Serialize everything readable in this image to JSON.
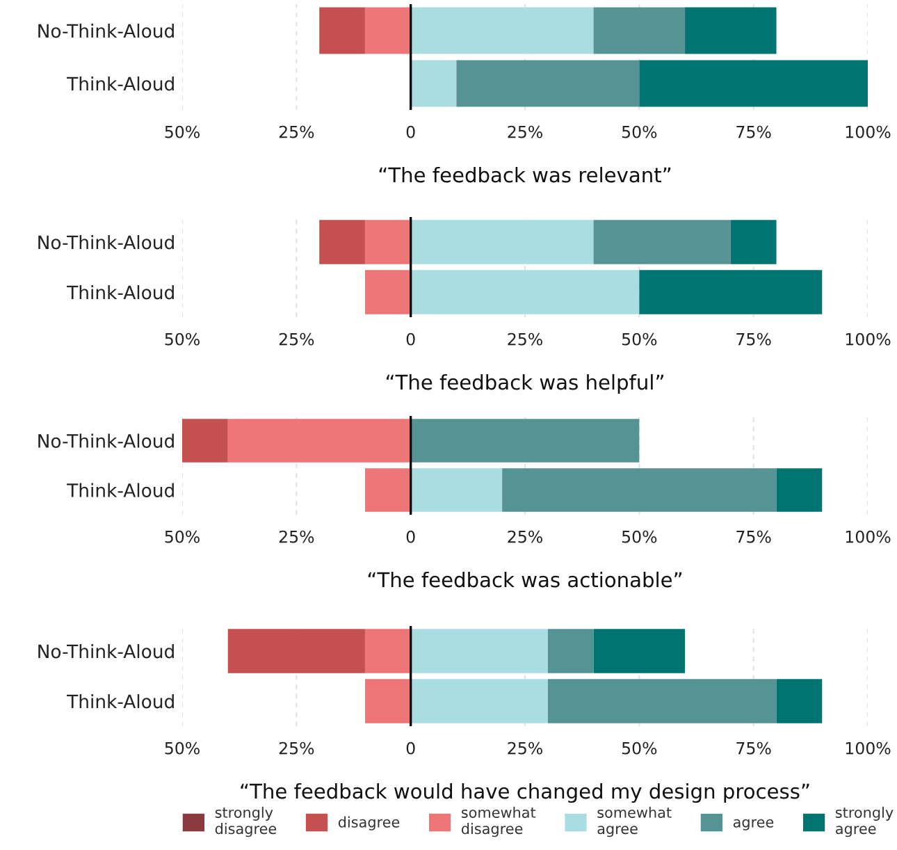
{
  "chart_data": [
    {
      "type": "bar",
      "orientation": "horizontal",
      "stacked": true,
      "title": "“The feedback was relevant”",
      "categories": [
        "No-Think-Aloud",
        "Think-Aloud"
      ],
      "xlim": [
        -50,
        100
      ],
      "xticks": [
        {
          "value": -50,
          "label": "50%"
        },
        {
          "value": -25,
          "label": "25%"
        },
        0,
        {
          "value": 25,
          "label": "25%"
        },
        {
          "value": 50,
          "label": "50%"
        },
        {
          "value": 75,
          "label": "75%"
        },
        {
          "value": 100,
          "label": "100%"
        }
      ],
      "grid": "x",
      "ref_lines": [
        {
          "axis": "x",
          "value": 0,
          "color": "#000000"
        }
      ],
      "series": [
        {
          "color": "#8b3a3e",
          "values": [
            0,
            0
          ]
        },
        {
          "color": "#c55050",
          "values": [
            -10,
            0
          ]
        },
        {
          "color": "#ee7676",
          "values": [
            -10,
            0
          ]
        },
        {
          "color": "#a9dde2",
          "values": [
            40,
            10
          ]
        },
        {
          "color": "#559395",
          "values": [
            20,
            40
          ]
        },
        {
          "color": "#007470",
          "values": [
            20,
            50
          ]
        }
      ]
    },
    {
      "type": "bar",
      "orientation": "horizontal",
      "stacked": true,
      "title": "“The feedback was helpful”",
      "categories": [
        "No-Think-Aloud",
        "Think-Aloud"
      ],
      "xlim": [
        -50,
        100
      ],
      "xticks": [
        {
          "value": -50,
          "label": "50%"
        },
        {
          "value": -25,
          "label": "25%"
        },
        0,
        {
          "value": 25,
          "label": "25%"
        },
        {
          "value": 50,
          "label": "50%"
        },
        {
          "value": 75,
          "label": "75%"
        },
        {
          "value": 100,
          "label": "100%"
        }
      ],
      "grid": "x",
      "ref_lines": [
        {
          "axis": "x",
          "value": 0,
          "color": "#000000"
        }
      ],
      "series": [
        {
          "color": "#8b3a3e",
          "values": [
            0,
            0
          ]
        },
        {
          "color": "#c55050",
          "values": [
            -10,
            0
          ]
        },
        {
          "color": "#ee7676",
          "values": [
            -10,
            -10
          ]
        },
        {
          "color": "#a9dde2",
          "values": [
            40,
            50
          ]
        },
        {
          "color": "#559395",
          "values": [
            30,
            0
          ]
        },
        {
          "color": "#007470",
          "values": [
            10,
            40
          ]
        }
      ]
    },
    {
      "type": "bar",
      "orientation": "horizontal",
      "stacked": true,
      "title": "“The feedback was actionable”",
      "categories": [
        "No-Think-Aloud",
        "Think-Aloud"
      ],
      "xlim": [
        -50,
        100
      ],
      "xticks": [
        {
          "value": -50,
          "label": "50%"
        },
        {
          "value": -25,
          "label": "25%"
        },
        0,
        {
          "value": 25,
          "label": "25%"
        },
        {
          "value": 50,
          "label": "50%"
        },
        {
          "value": 75,
          "label": "75%"
        },
        {
          "value": 100,
          "label": "100%"
        }
      ],
      "grid": "x",
      "ref_lines": [
        {
          "axis": "x",
          "value": 0,
          "color": "#000000"
        }
      ],
      "series": [
        {
          "color": "#8b3a3e",
          "values": [
            0,
            0
          ]
        },
        {
          "color": "#c55050",
          "values": [
            -10,
            0
          ]
        },
        {
          "color": "#ee7676",
          "values": [
            -40,
            -10
          ]
        },
        {
          "color": "#a9dde2",
          "values": [
            0,
            20
          ]
        },
        {
          "color": "#559395",
          "values": [
            50,
            60
          ]
        },
        {
          "color": "#007470",
          "values": [
            0,
            10
          ]
        }
      ]
    },
    {
      "type": "bar",
      "orientation": "horizontal",
      "stacked": true,
      "title": "“The feedback would have changed my design process”",
      "categories": [
        "No-Think-Aloud",
        "Think-Aloud"
      ],
      "xlim": [
        -50,
        100
      ],
      "xticks": [
        {
          "value": -50,
          "label": "50%"
        },
        {
          "value": -25,
          "label": "25%"
        },
        0,
        {
          "value": 25,
          "label": "25%"
        },
        {
          "value": 50,
          "label": "50%"
        },
        {
          "value": 75,
          "label": "75%"
        },
        {
          "value": 100,
          "label": "100%"
        }
      ],
      "grid": "x",
      "ref_lines": [
        {
          "axis": "x",
          "value": 0,
          "color": "#000000"
        }
      ],
      "legend": "bottom",
      "series": [
        {
          "name": "strongly disagree",
          "color": "#8b3a3e",
          "values": [
            0,
            0
          ]
        },
        {
          "name": "disagree",
          "color": "#c55050",
          "values": [
            -30,
            0
          ]
        },
        {
          "name": "somewhat disagree",
          "color": "#ee7676",
          "values": [
            -10,
            -10
          ]
        },
        {
          "name": "somewhat agree",
          "color": "#a9dde2",
          "values": [
            30,
            30
          ]
        },
        {
          "name": "agree",
          "color": "#559395",
          "values": [
            10,
            50
          ]
        },
        {
          "name": "strongly agree",
          "color": "#007470",
          "values": [
            20,
            10
          ]
        }
      ]
    }
  ]
}
